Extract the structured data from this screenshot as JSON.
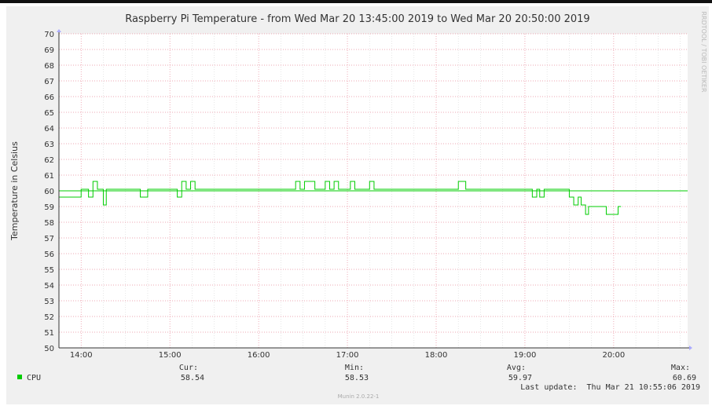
{
  "chart_data": {
    "type": "line",
    "title": "Raspberry Pi Temperature - from Wed Mar 20 13:45:00 2019 to Wed Mar 20 20:50:00 2019",
    "ylabel": "Temperature in Celsius",
    "xlabel": "",
    "watermark": "RRDTOOL / TOBI OETIKER",
    "ylim": [
      50,
      70
    ],
    "xlim": [
      "13:45",
      "20:50"
    ],
    "yticks": [
      "50",
      "51",
      "52",
      "53",
      "54",
      "55",
      "56",
      "57",
      "58",
      "59",
      "60",
      "61",
      "62",
      "63",
      "64",
      "65",
      "66",
      "67",
      "68",
      "69",
      "70"
    ],
    "xticks": [
      "14:00",
      "15:00",
      "16:00",
      "17:00",
      "18:00",
      "19:00",
      "20:00"
    ],
    "grid": true,
    "reference_line": {
      "value": 60,
      "color": "#00cc00"
    },
    "series": [
      {
        "name": "CPU",
        "color": "#00cc00",
        "step": true,
        "points": [
          [
            "13:45",
            59.6
          ],
          [
            "14:00",
            60.1
          ],
          [
            "14:05",
            59.6
          ],
          [
            "14:08",
            60.6
          ],
          [
            "14:11",
            60.1
          ],
          [
            "14:15",
            59.1
          ],
          [
            "14:17",
            60.1
          ],
          [
            "14:40",
            59.6
          ],
          [
            "14:45",
            60.1
          ],
          [
            "15:05",
            59.6
          ],
          [
            "15:08",
            60.6
          ],
          [
            "15:11",
            60.1
          ],
          [
            "15:14",
            60.6
          ],
          [
            "15:17",
            60.1
          ],
          [
            "16:25",
            60.6
          ],
          [
            "16:28",
            60.1
          ],
          [
            "16:31",
            60.6
          ],
          [
            "16:38",
            60.1
          ],
          [
            "16:45",
            60.6
          ],
          [
            "16:48",
            60.1
          ],
          [
            "16:51",
            60.6
          ],
          [
            "16:54",
            60.1
          ],
          [
            "17:02",
            60.6
          ],
          [
            "17:05",
            60.1
          ],
          [
            "17:15",
            60.6
          ],
          [
            "17:18",
            60.1
          ],
          [
            "18:15",
            60.6
          ],
          [
            "18:20",
            60.1
          ],
          [
            "19:05",
            59.6
          ],
          [
            "19:08",
            60.1
          ],
          [
            "19:10",
            59.6
          ],
          [
            "19:13",
            60.1
          ],
          [
            "19:30",
            59.6
          ],
          [
            "19:33",
            59.1
          ],
          [
            "19:36",
            59.6
          ],
          [
            "19:38",
            59.1
          ],
          [
            "19:41",
            58.5
          ],
          [
            "19:43",
            59.0
          ],
          [
            "19:55",
            58.5
          ],
          [
            "20:03",
            59.0
          ],
          [
            "20:05",
            59.0
          ]
        ]
      }
    ]
  },
  "legend": {
    "label": "CPU",
    "color": "#00cc00",
    "cur_label": "Cur:",
    "cur_value": "58.54",
    "min_label": "Min:",
    "min_value": "58.53",
    "avg_label": "Avg:",
    "avg_value": "59.97",
    "max_label": "Max:",
    "max_value": "60.69"
  },
  "footer": {
    "last_update": "Last update:  Thu Mar 21 10:55:06 2019",
    "version": "Munin 2.0.22-1"
  },
  "colors": {
    "background": "#f0f0f0",
    "plot_background": "#ffffff",
    "major_grid": "#e88a9a",
    "minor_grid": "#dddddd",
    "series": "#00cc00",
    "axis": "#333333"
  }
}
